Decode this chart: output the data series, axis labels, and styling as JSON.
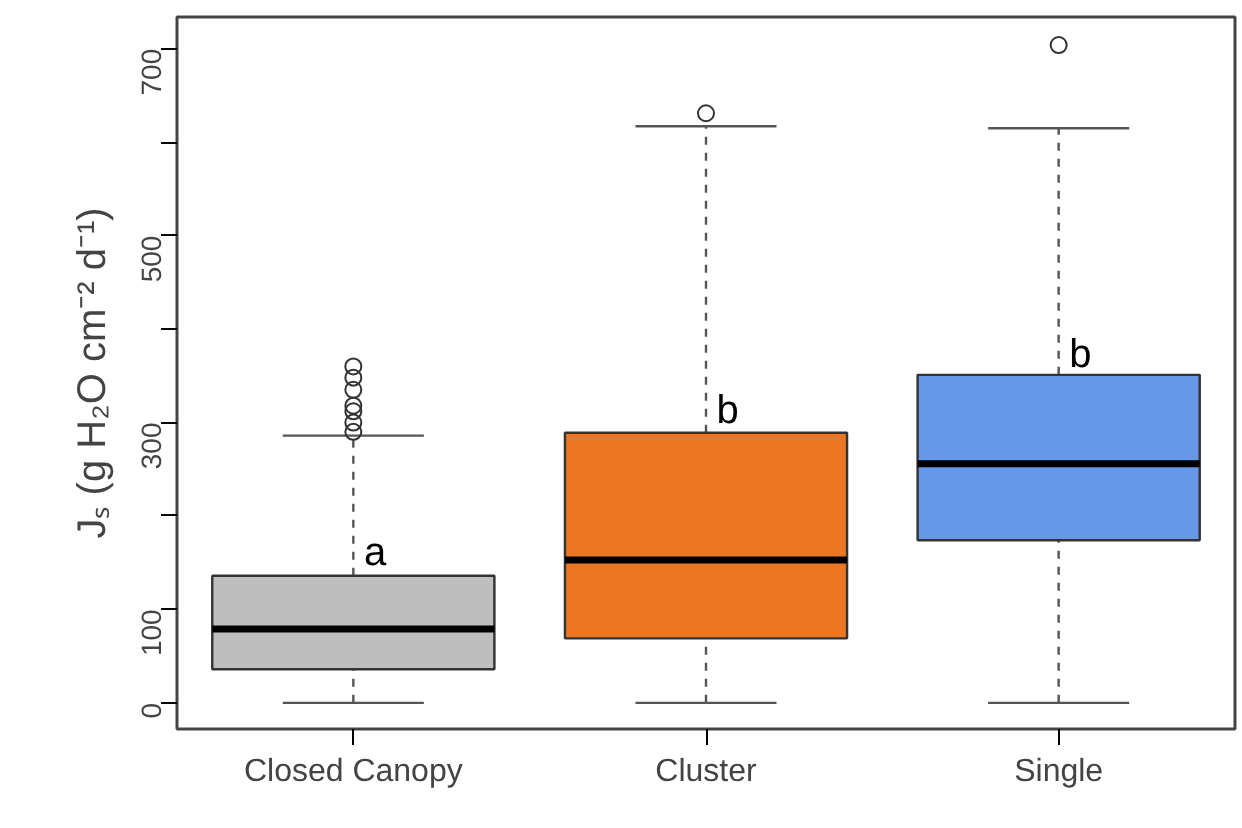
{
  "chart_data": {
    "type": "box",
    "ylabel": "Jₛ (g H₂O cm⁻² d⁻¹)",
    "categories": [
      "Closed Canopy",
      "Cluster",
      "Single"
    ],
    "colors": [
      "#bebebe",
      "#ec7723",
      "#6797e8"
    ],
    "boxes": [
      {
        "low": 0,
        "q1": 36,
        "median": 79,
        "q3": 136,
        "high": 286,
        "outliers": [
          360,
          348,
          335,
          318,
          312,
          300,
          290
        ]
      },
      {
        "low": 0,
        "q1": 69,
        "median": 153,
        "q3": 289,
        "high": 617,
        "outliers": [
          631
        ]
      },
      {
        "low": 0,
        "q1": 174,
        "median": 256,
        "q3": 351,
        "high": 615,
        "outliers": [
          704
        ]
      }
    ],
    "ylim": [
      -28,
      734
    ],
    "yticks": [
      0,
      100,
      {
        "value": 200,
        "label": null
      },
      300,
      {
        "value": 400,
        "label": null
      },
      500,
      {
        "value": 600,
        "label": null
      },
      700
    ],
    "annotations": [
      {
        "text": "a",
        "x": "Closed Canopy",
        "y": 160
      },
      {
        "text": "b",
        "x": "Cluster",
        "y": 312
      },
      {
        "text": "b",
        "x": "Single",
        "y": 372
      }
    ],
    "grid": false
  }
}
